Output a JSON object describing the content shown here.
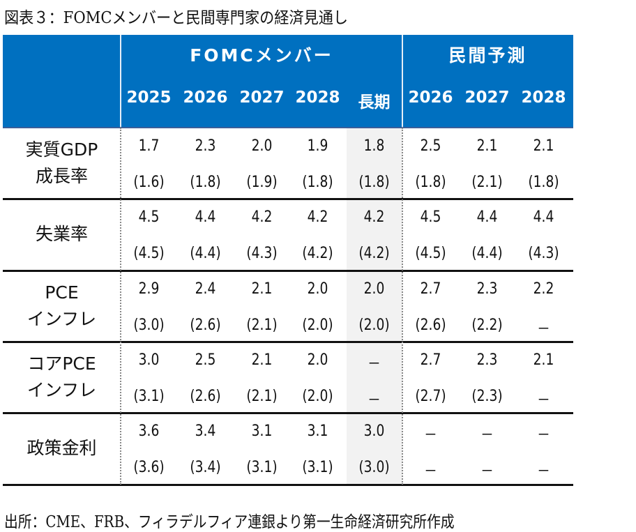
{
  "title": "図表３：FOMCメンバーと民間専門家の経済見通し",
  "header": {
    "group_fomc": "FOMCメンバー",
    "group_private": "民間予測",
    "columns": [
      "2025",
      "2026",
      "2027",
      "2028",
      "長期",
      "2026",
      "2027",
      "2028"
    ]
  },
  "rows": [
    {
      "label_lines": [
        "実質GDP",
        "成長率"
      ],
      "current": [
        "1.7",
        "2.3",
        "2.0",
        "1.9",
        "1.8",
        "2.5",
        "2.1",
        "2.1"
      ],
      "previous": [
        "(1.6)",
        "(1.8)",
        "(1.9)",
        "(1.8)",
        "(1.8)",
        "(1.8)",
        "(2.1)",
        "(1.8)"
      ]
    },
    {
      "label_lines": [
        "失業率"
      ],
      "current": [
        "4.5",
        "4.4",
        "4.2",
        "4.2",
        "4.2",
        "4.5",
        "4.4",
        "4.4"
      ],
      "previous": [
        "(4.5)",
        "(4.4)",
        "(4.3)",
        "(4.2)",
        "(4.2)",
        "(4.5)",
        "(4.4)",
        "(4.3)"
      ]
    },
    {
      "label_lines": [
        "PCE",
        "インフレ"
      ],
      "current": [
        "2.9",
        "2.4",
        "2.1",
        "2.0",
        "2.0",
        "2.7",
        "2.3",
        "2.2"
      ],
      "previous": [
        "(3.0)",
        "(2.6)",
        "(2.1)",
        "(2.0)",
        "(2.0)",
        "(2.6)",
        "(2.2)",
        "－"
      ]
    },
    {
      "label_lines": [
        "コアPCE",
        "インフレ"
      ],
      "current": [
        "3.0",
        "2.5",
        "2.1",
        "2.0",
        "－",
        "2.7",
        "2.3",
        "2.1"
      ],
      "previous": [
        "(3.1)",
        "(2.6)",
        "(2.1)",
        "(2.0)",
        "－",
        "(2.7)",
        "(2.3)",
        "－"
      ]
    },
    {
      "label_lines": [
        "政策金利"
      ],
      "current": [
        "3.6",
        "3.4",
        "3.1",
        "3.1",
        "3.0",
        "－",
        "－",
        "－"
      ],
      "previous": [
        "(3.6)",
        "(3.4)",
        "(3.1)",
        "(3.1)",
        "(3.0)",
        "－",
        "－",
        "－"
      ]
    }
  ],
  "footer": "出所：CME、FRB、フィラデルフィア連銀より第一生命経済研究所作成",
  "colors": {
    "header_bg": "#0070c0",
    "long_term_bg": "#f2f2f2"
  }
}
